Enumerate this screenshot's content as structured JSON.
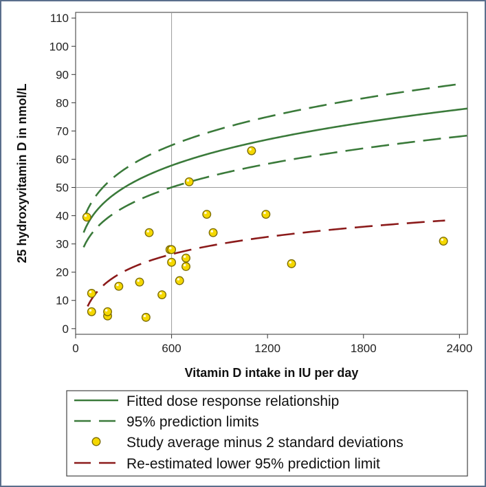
{
  "chart_data": {
    "type": "scatter",
    "title": "",
    "xlabel": "Vitamin D intake in IU per day",
    "ylabel": "25 hydroxyvitamin D in nmol/L",
    "xlim": [
      0,
      2450
    ],
    "ylim": [
      -2,
      112
    ],
    "xticks": [
      0,
      600,
      1200,
      1800,
      2400
    ],
    "yticks": [
      0,
      10,
      20,
      30,
      40,
      50,
      60,
      70,
      80,
      90,
      100,
      110
    ],
    "reference_lines": {
      "x": 600,
      "y": 50
    },
    "fitted_curve": {
      "name": "Fitted dose response relationship",
      "model": "a * x^b",
      "a": 14.8,
      "b": 0.2129,
      "x_range": [
        50,
        2450
      ],
      "color": "#3a7a3a"
    },
    "prediction_limits": {
      "name": "95% prediction limits",
      "upper": {
        "model": "a * x^b",
        "a": 17.2,
        "b": 0.2077,
        "x_range": [
          50,
          2400
        ]
      },
      "lower": {
        "model": "a * x^b",
        "a": 12.1,
        "b": 0.2219,
        "x_range": [
          50,
          2450
        ]
      },
      "color": "#3a7a3a"
    },
    "reestimated_lower_limit": {
      "name": "Re-estimated lower 95% prediction limit",
      "model": "a * log(x) + c",
      "a": 8.87,
      "c": -30.4,
      "x_range": [
        75,
        2310
      ],
      "color": "#8b1a1a"
    },
    "points": {
      "name": "Study average minus 2 standard deviations",
      "fill": "#f5d800",
      "stroke": "#7a6a00",
      "x": [
        70,
        100,
        100,
        200,
        200,
        270,
        400,
        440,
        460,
        540,
        590,
        600,
        600,
        650,
        690,
        690,
        710,
        820,
        860,
        1100,
        1190,
        1350,
        2300
      ],
      "y": [
        39.5,
        6,
        12.5,
        4.5,
        6,
        15,
        16.5,
        4,
        34,
        12,
        28,
        28,
        23.5,
        17,
        22,
        25,
        52,
        40.5,
        34,
        63,
        40.5,
        23,
        31
      ]
    },
    "legend": [
      {
        "label": "Fitted dose response relationship",
        "style": "solid",
        "color": "#3a7a3a"
      },
      {
        "label": "95% prediction limits",
        "style": "dashed",
        "color": "#3a7a3a"
      },
      {
        "label": "Study average minus 2 standard deviations",
        "style": "marker",
        "color": "#f5d800"
      },
      {
        "label": "Re-estimated lower 95% prediction limit",
        "style": "dashed",
        "color": "#8b1a1a"
      }
    ],
    "legend_position": "bottom"
  }
}
